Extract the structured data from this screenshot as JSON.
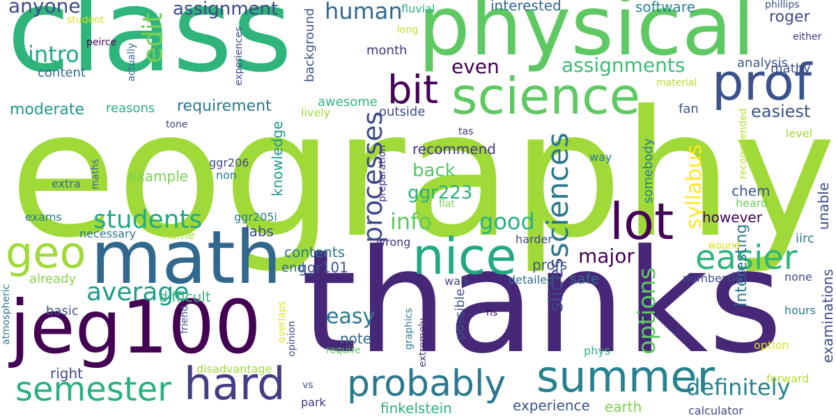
{
  "words": [
    {
      "text": "geography",
      "color": "#a0da39"
    },
    {
      "text": "thanks",
      "color": "#472878"
    },
    {
      "text": "class",
      "color": "#2fb47c"
    },
    {
      "text": "physical",
      "color": "#5ec962"
    },
    {
      "text": "math",
      "color": "#31688e"
    },
    {
      "text": "jeg100",
      "color": "#440154"
    },
    {
      "text": "summer",
      "color": "#26828e"
    },
    {
      "text": "science",
      "color": "#5ec962"
    },
    {
      "text": "nice",
      "color": "#22a884"
    },
    {
      "text": "prof",
      "color": "#3b528b"
    },
    {
      "text": "lot",
      "color": "#440154"
    },
    {
      "text": "hard",
      "color": "#433e85"
    },
    {
      "text": "probably",
      "color": "#2a788e"
    },
    {
      "text": "geo",
      "color": "#a0da39"
    },
    {
      "text": "semester",
      "color": "#2ab07f"
    },
    {
      "text": "bit",
      "color": "#450457"
    },
    {
      "text": "easier",
      "color": "#2fb47c"
    },
    {
      "text": "definitely",
      "color": "#26828e"
    },
    {
      "text": "average",
      "color": "#1e9b8a"
    },
    {
      "text": "sciences",
      "color": "#2a788e"
    },
    {
      "text": "processes",
      "color": "#3e4989"
    },
    {
      "text": "students",
      "color": "#22a884"
    },
    {
      "text": "info",
      "color": "#5ec962"
    },
    {
      "text": "good",
      "color": "#2ab07f"
    },
    {
      "text": "options",
      "color": "#5ec962"
    },
    {
      "text": "syllabus",
      "color": "#fde725"
    },
    {
      "text": "intro",
      "color": "#22a884"
    },
    {
      "text": "human",
      "color": "#31688e"
    },
    {
      "text": "assignments",
      "color": "#3bbb75"
    },
    {
      "text": "anyone",
      "color": "#3e4989"
    },
    {
      "text": "edit",
      "color": "#75d054"
    },
    {
      "text": "assignment",
      "color": "#3e4989"
    },
    {
      "text": "major",
      "color": "#440154"
    },
    {
      "text": "easy",
      "color": "#2a788e"
    },
    {
      "text": "even",
      "color": "#440154"
    },
    {
      "text": "requirement",
      "color": "#2a788e"
    },
    {
      "text": "moderate",
      "color": "#1f988b"
    },
    {
      "text": "ggr223",
      "color": "#2ab07f"
    },
    {
      "text": "back",
      "color": "#52c569"
    },
    {
      "text": "ggr101",
      "color": "#3b528b"
    },
    {
      "text": "slices",
      "color": "#3e4989"
    },
    {
      "text": "roger",
      "color": "#3e4989"
    },
    {
      "text": "easiest",
      "color": "#3b528b"
    },
    {
      "text": "interesting",
      "color": "#2a788e"
    },
    {
      "text": "examinations",
      "color": "#3e4989"
    },
    {
      "text": "unable",
      "color": "#3e4989"
    },
    {
      "text": "software",
      "color": "#26828e"
    },
    {
      "text": "interested",
      "color": "#31688e"
    },
    {
      "text": "recommend",
      "color": "#46327e"
    },
    {
      "text": "example",
      "color": "#7ad151"
    },
    {
      "text": "reasons",
      "color": "#2ab07f"
    },
    {
      "text": "contents",
      "color": "#2a788e"
    },
    {
      "text": "profs",
      "color": "#3b528b"
    },
    {
      "text": "safe",
      "color": "#31688e"
    },
    {
      "text": "difficult",
      "color": "#35b779"
    },
    {
      "text": "right",
      "color": "#3e4989"
    },
    {
      "text": "content",
      "color": "#31688e"
    },
    {
      "text": "labs",
      "color": "#3e4989"
    },
    {
      "text": "outside",
      "color": "#3e4989"
    },
    {
      "text": "month",
      "color": "#46327e"
    },
    {
      "text": "fan",
      "color": "#3b528b"
    },
    {
      "text": "chem",
      "color": "#3b528b"
    },
    {
      "text": "however",
      "color": "#440154"
    },
    {
      "text": "mathy",
      "color": "#3e4989"
    },
    {
      "text": "analysis",
      "color": "#3b528b"
    },
    {
      "text": "knowledge",
      "color": "#1f988b"
    },
    {
      "text": "background",
      "color": "#3b528b"
    },
    {
      "text": "awesome",
      "color": "#2fb47c"
    },
    {
      "text": "somebody",
      "color": "#2a788e"
    },
    {
      "text": "note",
      "color": "#31688e"
    },
    {
      "text": "end",
      "color": "#31688e"
    },
    {
      "text": "def",
      "color": "#3e4989"
    },
    {
      "text": "iirc",
      "color": "#2a788e"
    },
    {
      "text": "basic",
      "color": "#3b528b"
    },
    {
      "text": "already",
      "color": "#86d549"
    },
    {
      "text": "name",
      "color": "#a8db34"
    },
    {
      "text": "necessary",
      "color": "#2a788e"
    },
    {
      "text": "experience",
      "color": "#3b528b"
    },
    {
      "text": "earth",
      "color": "#7ad151"
    },
    {
      "text": "finkelstein",
      "color": "#2ab07f"
    },
    {
      "text": "park",
      "color": "#46327e"
    },
    {
      "text": "calculator",
      "color": "#3e4989"
    },
    {
      "text": "forward",
      "color": "#b5de2b"
    },
    {
      "text": "option",
      "color": "#d8e219"
    },
    {
      "text": "hours",
      "color": "#2a788e"
    },
    {
      "text": "none",
      "color": "#3e4989"
    },
    {
      "text": "number",
      "color": "#3b528b"
    },
    {
      "text": "detailed",
      "color": "#31688e"
    },
    {
      "text": "walk",
      "color": "#3e4989"
    },
    {
      "text": "harder",
      "color": "#3e4989"
    },
    {
      "text": "wrong",
      "color": "#46327e"
    },
    {
      "text": "wound",
      "color": "#d8e219"
    },
    {
      "text": "heard",
      "color": "#6ccd5a"
    },
    {
      "text": "flat",
      "color": "#7ad151"
    },
    {
      "text": "way",
      "color": "#2a788e"
    },
    {
      "text": "level",
      "color": "#a0da39"
    },
    {
      "text": "tas",
      "color": "#46327e"
    },
    {
      "text": "lively",
      "color": "#a0da39"
    },
    {
      "text": "tone",
      "color": "#3e4989"
    },
    {
      "text": "extra",
      "color": "#31688e"
    },
    {
      "text": "exams",
      "color": "#2a788e"
    },
    {
      "text": "non",
      "color": "#2a788e"
    },
    {
      "text": "ggr206",
      "color": "#3e4989"
    },
    {
      "text": "ggr205i",
      "color": "#2a788e"
    },
    {
      "text": "fluvial",
      "color": "#2ab07f"
    },
    {
      "text": "long",
      "color": "#b5de2b"
    },
    {
      "text": "peirce",
      "color": "#440154"
    },
    {
      "text": "student",
      "color": "#d8e219"
    },
    {
      "text": "phillips",
      "color": "#3b528b"
    },
    {
      "text": "either",
      "color": "#46327e"
    },
    {
      "text": "material",
      "color": "#b5de2b"
    },
    {
      "text": "vs",
      "color": "#3b528b"
    },
    {
      "text": "hs",
      "color": "#440154"
    },
    {
      "text": "phys",
      "color": "#2ab07f"
    },
    {
      "text": "require",
      "color": "#5ec962"
    },
    {
      "text": "disadvantage",
      "color": "#a0da39"
    },
    {
      "text": "actually",
      "color": "#31688e"
    },
    {
      "text": "experiences",
      "color": "#3e4989"
    },
    {
      "text": "maths",
      "color": "#31688e"
    },
    {
      "text": "preparation",
      "color": "#46327e"
    },
    {
      "text": "recommended",
      "color": "#b5de2b"
    },
    {
      "text": "atmospheric",
      "color": "#2a788e"
    },
    {
      "text": "friend",
      "color": "#3b528b"
    },
    {
      "text": "overlaps",
      "color": "#d8e219"
    },
    {
      "text": "opinion",
      "color": "#3e4989"
    },
    {
      "text": "graphics",
      "color": "#2a788e"
    },
    {
      "text": "extremely",
      "color": "#46327e"
    },
    {
      "text": "possible",
      "color": "#3b528b"
    }
  ]
}
